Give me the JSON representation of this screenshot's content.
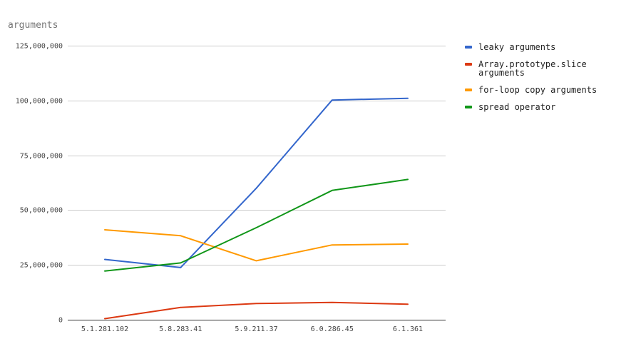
{
  "chart_data": {
    "type": "line",
    "title": "arguments",
    "categories": [
      "5.1.281.102",
      "5.8.283.41",
      "5.9.211.37",
      "6.0.286.45",
      "6.1.361"
    ],
    "ylim": [
      0,
      125000000
    ],
    "y_ticks": [
      0,
      25000000,
      50000000,
      75000000,
      100000000,
      125000000
    ],
    "y_tick_labels": [
      "0",
      "25,000,000",
      "50,000,000",
      "75,000,000",
      "100,000,000",
      "125,000,000"
    ],
    "grid": true,
    "legend_position": "right",
    "series": [
      {
        "name": "leaky arguments",
        "color": "#3366cc",
        "values": [
          27500000,
          23800000,
          60000000,
          100200000,
          101000000
        ]
      },
      {
        "name": "Array.prototype.slice arguments",
        "legend_lines": [
          "Array.prototype.slice",
          "arguments"
        ],
        "color": "#dc3912",
        "values": [
          500000,
          5600000,
          7400000,
          7900000,
          7100000
        ]
      },
      {
        "name": "for-loop copy arguments",
        "color": "#ff9900",
        "values": [
          41000000,
          38300000,
          26900000,
          34100000,
          34500000
        ]
      },
      {
        "name": "spread operator",
        "color": "#109618",
        "values": [
          22200000,
          25900000,
          42000000,
          59000000,
          64000000
        ]
      }
    ]
  }
}
